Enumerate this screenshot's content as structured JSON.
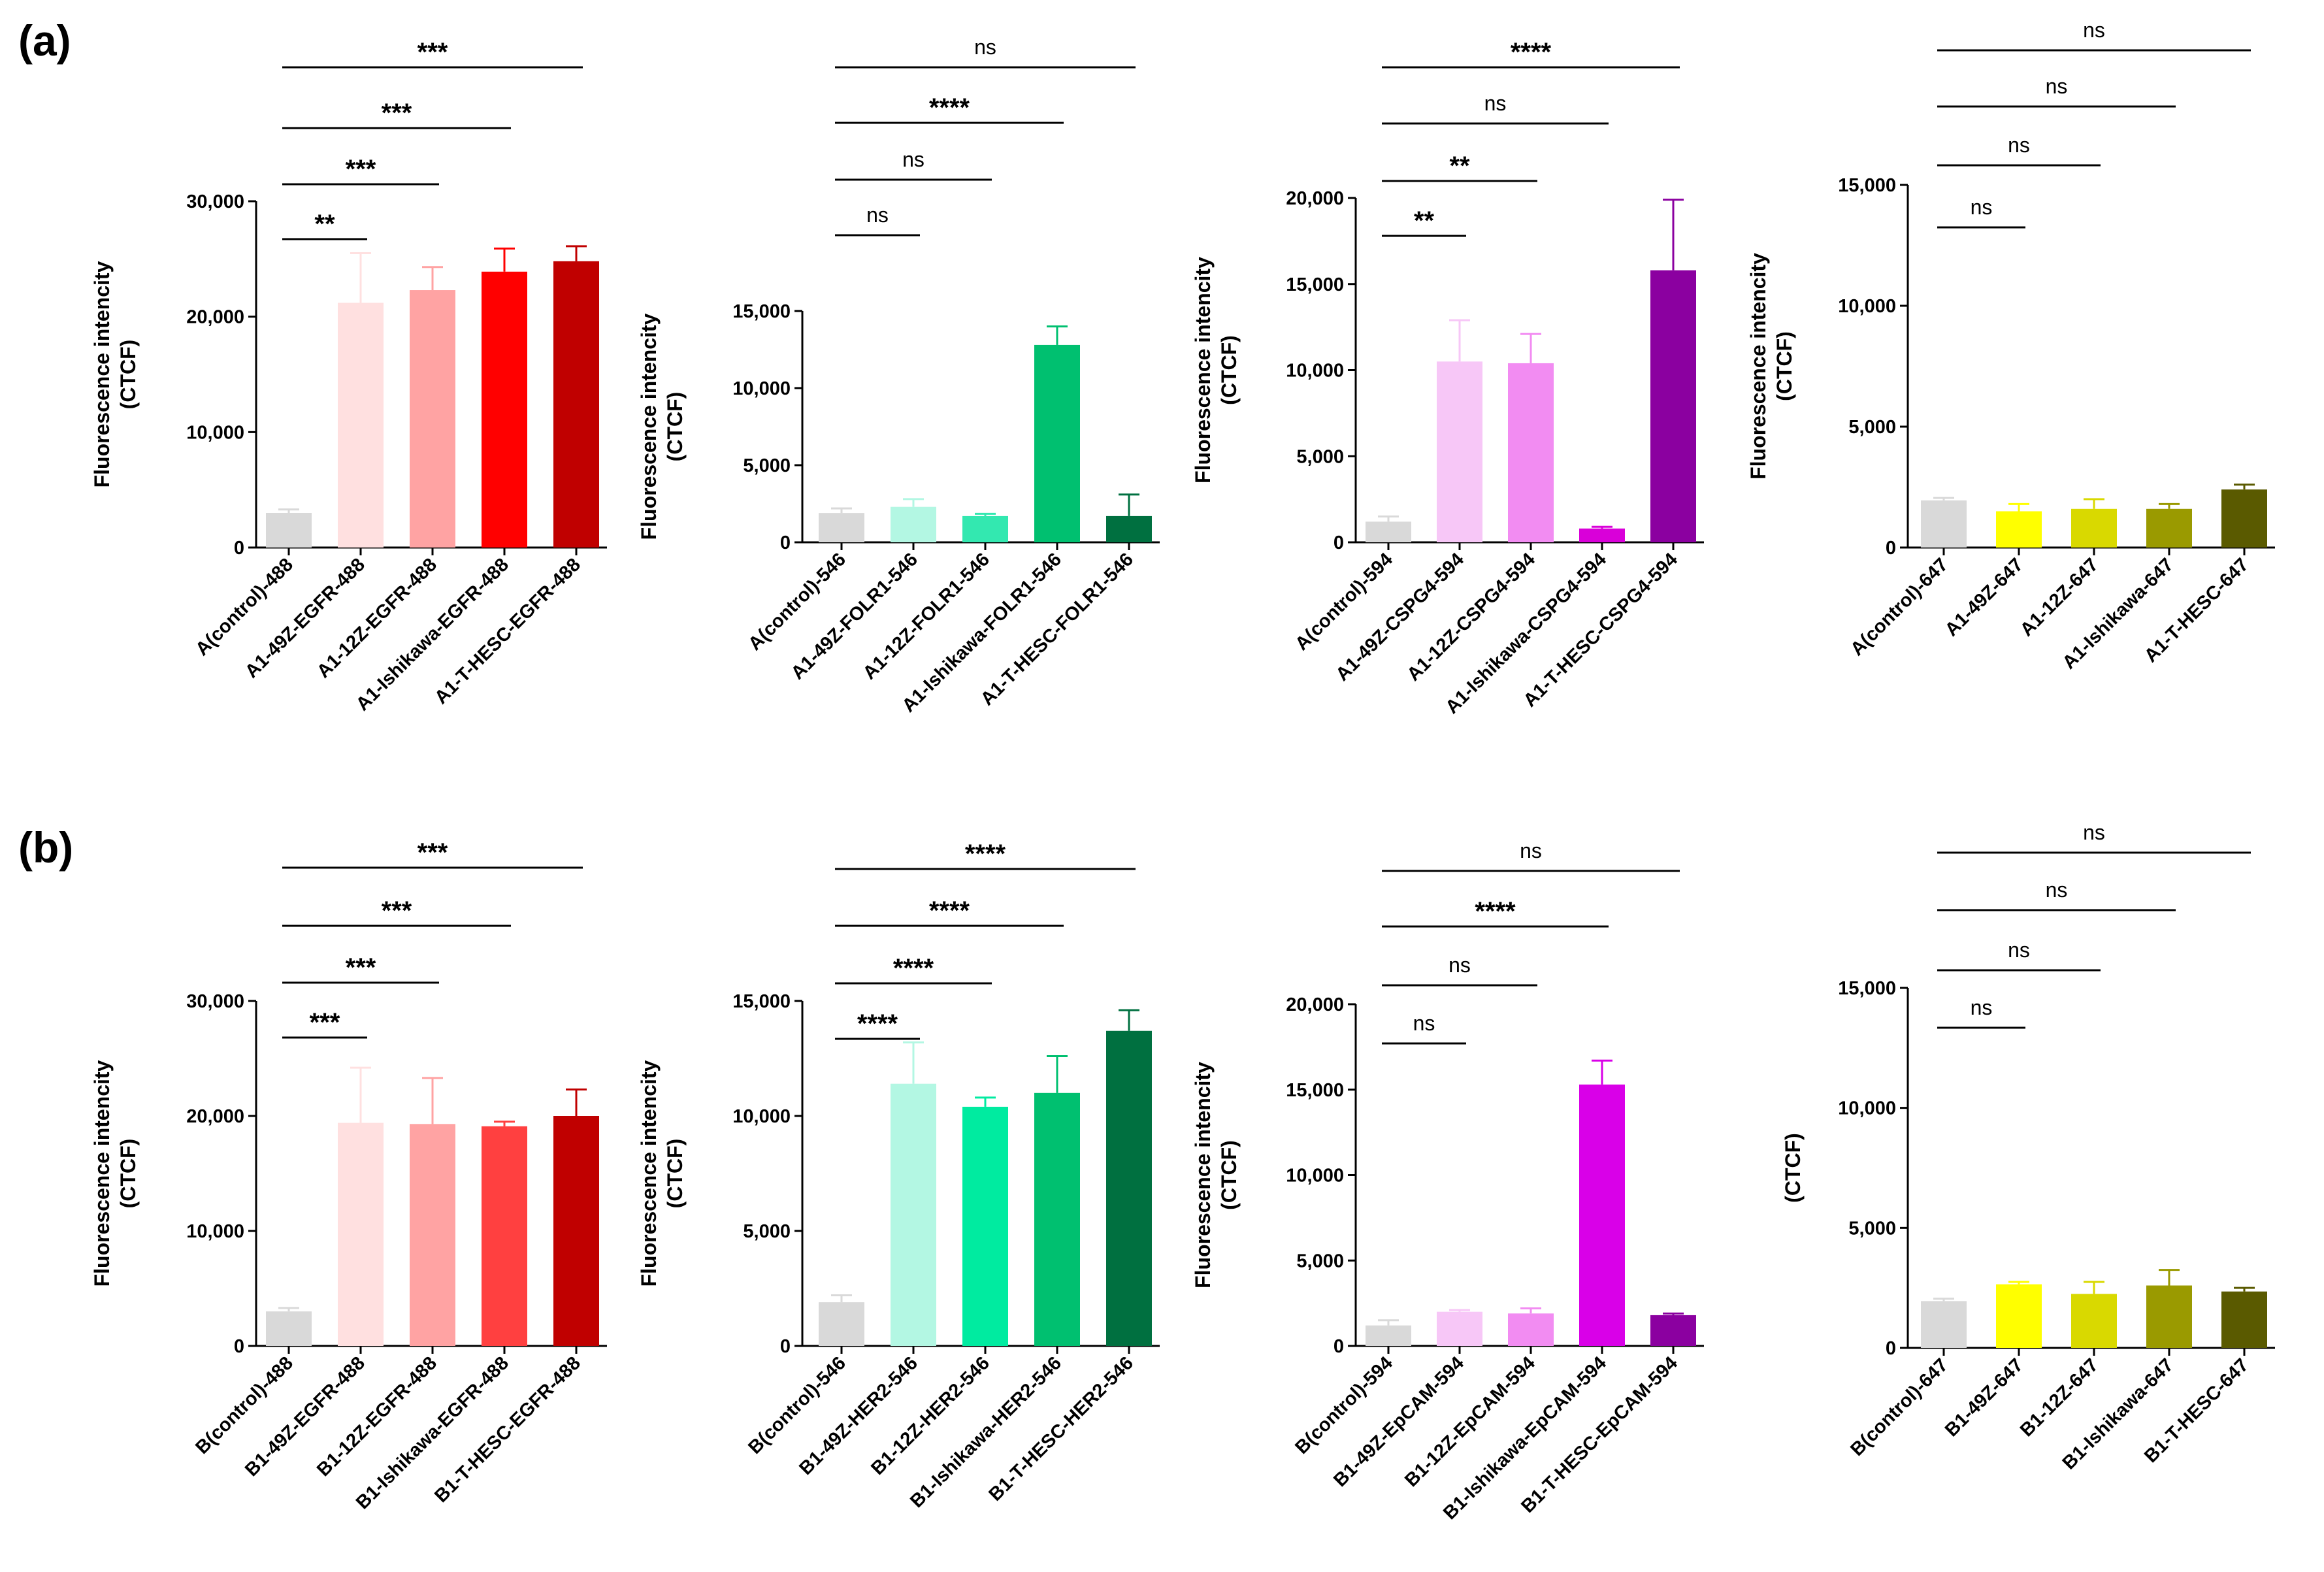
{
  "figure_labels": [
    "(a)",
    "(b)"
  ],
  "chart_data": [
    {
      "panel": "(a)",
      "type": "bar",
      "ylabel": [
        "Fluorescence intencity",
        "(CTCF)"
      ],
      "ylim": [
        0,
        30000
      ],
      "ticks": [
        0,
        10000,
        20000,
        30000
      ],
      "tick_labels": [
        "0",
        "10,000",
        "20,000",
        "30,000"
      ],
      "categories": [
        "A(control)-488",
        "A1-49Z-EGFR-488",
        "A1-12Z-EGFR-488",
        "A1-Ishikawa-EGFR-488",
        "A1-T-HESC-EGFR-488"
      ],
      "values": [
        3000,
        21200,
        22300,
        23900,
        24800
      ],
      "errors": [
        300,
        4300,
        2000,
        2000,
        1300
      ],
      "colors": [
        "#d9d9d9",
        "#ffe0e0",
        "#ffa3a3",
        "#ff0000",
        "#c00000"
      ],
      "comparisons": [
        {
          "to": 1,
          "label": "**"
        },
        {
          "to": 2,
          "label": "***"
        },
        {
          "to": 3,
          "label": "***"
        },
        {
          "to": 4,
          "label": "***"
        }
      ]
    },
    {
      "panel": "(a)",
      "type": "bar",
      "ylabel": [
        "Fluorescence intencity",
        "(CTCF)"
      ],
      "ylim": [
        0,
        15000
      ],
      "ticks": [
        0,
        5000,
        10000,
        15000
      ],
      "tick_labels": [
        "0",
        "5,000",
        "10,000",
        "15,000"
      ],
      "categories": [
        "A(control)-546",
        "A1-49Z-FOLR1-546",
        "A1-12Z-FOLR1-546",
        "A1-Ishikawa-FOLR1-546",
        "A1-T-HESC-FOLR1-546"
      ],
      "values": [
        1900,
        2300,
        1700,
        12800,
        1700
      ],
      "errors": [
        300,
        500,
        150,
        1200,
        1400
      ],
      "colors": [
        "#d9d9d9",
        "#b3f7e3",
        "#33e8b0",
        "#00c070",
        "#007040"
      ],
      "comparisons": [
        {
          "to": 1,
          "label": "ns"
        },
        {
          "to": 2,
          "label": "ns"
        },
        {
          "to": 3,
          "label": "****"
        },
        {
          "to": 4,
          "label": "ns"
        }
      ]
    },
    {
      "panel": "(a)",
      "type": "bar",
      "ylabel": [
        "Fluorescence intencity",
        "(CTCF)"
      ],
      "ylim": [
        0,
        20000
      ],
      "ticks": [
        0,
        5000,
        10000,
        15000,
        20000
      ],
      "tick_labels": [
        "0",
        "5,000",
        "10,000",
        "15,000",
        "20,000"
      ],
      "categories": [
        "A(control)-594",
        "A1-49Z-CSPG4-594",
        "A1-12Z-CSPG4-594",
        "A1-Ishikawa-CSPG4-594",
        "A1-T-HESC-CSPG4-594"
      ],
      "values": [
        1200,
        10500,
        10400,
        800,
        15800
      ],
      "errors": [
        300,
        2400,
        1700,
        100,
        4100
      ],
      "colors": [
        "#d9d9d9",
        "#f7c7f7",
        "#f28cf2",
        "#d900d9",
        "#8b00a0"
      ],
      "comparisons": [
        {
          "to": 1,
          "label": "**"
        },
        {
          "to": 2,
          "label": "**"
        },
        {
          "to": 3,
          "label": "ns"
        },
        {
          "to": 4,
          "label": "****"
        }
      ]
    },
    {
      "panel": "(a)",
      "type": "bar",
      "ylabel": [
        "Fluorescence intencity",
        "(CTCF)"
      ],
      "ylim": [
        0,
        15000
      ],
      "ticks": [
        0,
        5000,
        10000,
        15000
      ],
      "tick_labels": [
        "0",
        "5,000",
        "10,000",
        "15,000"
      ],
      "categories": [
        "A(control)-647",
        "A1-49Z-647",
        "A1-12Z-647",
        "A1-Ishikawa-647",
        "A1-T-HESC-647"
      ],
      "values": [
        1950,
        1500,
        1600,
        1600,
        2400
      ],
      "errors": [
        100,
        300,
        400,
        200,
        200
      ],
      "colors": [
        "#d9d9d9",
        "#ffff00",
        "#d9d900",
        "#9a9a00",
        "#5a5a00"
      ],
      "comparisons": [
        {
          "to": 1,
          "label": "ns"
        },
        {
          "to": 2,
          "label": "ns"
        },
        {
          "to": 3,
          "label": "ns"
        },
        {
          "to": 4,
          "label": "ns"
        }
      ]
    },
    {
      "panel": "(b)",
      "type": "bar",
      "ylabel": [
        "Fluorescence intencity",
        "(CTCF)"
      ],
      "ylim": [
        0,
        30000
      ],
      "ticks": [
        0,
        10000,
        20000,
        30000
      ],
      "tick_labels": [
        "0",
        "10,000",
        "20,000",
        "30,000"
      ],
      "categories": [
        "B(control)-488",
        "B1-49Z-EGFR-488",
        "B1-12Z-EGFR-488",
        "B1-Ishikawa-EGFR-488",
        "B1-T-HESC-EGFR-488"
      ],
      "values": [
        3000,
        19400,
        19300,
        19100,
        20000
      ],
      "errors": [
        300,
        4800,
        4000,
        400,
        2300
      ],
      "colors": [
        "#d9d9d9",
        "#ffe0e0",
        "#ffa3a3",
        "#ff4040",
        "#c00000"
      ],
      "comparisons": [
        {
          "to": 1,
          "label": "***"
        },
        {
          "to": 2,
          "label": "***"
        },
        {
          "to": 3,
          "label": "***"
        },
        {
          "to": 4,
          "label": "***"
        }
      ]
    },
    {
      "panel": "(b)",
      "type": "bar",
      "ylabel": [
        "Fluorescence intencity",
        "(CTCF)"
      ],
      "ylim": [
        0,
        15000
      ],
      "ticks": [
        0,
        5000,
        10000,
        15000
      ],
      "tick_labels": [
        "0",
        "5,000",
        "10,000",
        "15,000"
      ],
      "categories": [
        "B(control)-546",
        "B1-49Z-HER2-546",
        "B1-12Z-HER2-546",
        "B1-Ishikawa-HER2-546",
        "B1-T-HESC-HER2-546"
      ],
      "values": [
        1900,
        11400,
        10400,
        11000,
        13700
      ],
      "errors": [
        300,
        1800,
        400,
        1600,
        900
      ],
      "colors": [
        "#d9d9d9",
        "#b3f7e3",
        "#00eba0",
        "#00c070",
        "#007040"
      ],
      "comparisons": [
        {
          "to": 1,
          "label": "****"
        },
        {
          "to": 2,
          "label": "****"
        },
        {
          "to": 3,
          "label": "****"
        },
        {
          "to": 4,
          "label": "****"
        }
      ]
    },
    {
      "panel": "(b)",
      "type": "bar",
      "ylabel": [
        "Fluorescence intencity",
        "(CTCF)"
      ],
      "ylim": [
        0,
        20000
      ],
      "ticks": [
        0,
        5000,
        10000,
        15000,
        20000
      ],
      "tick_labels": [
        "0",
        "5,000",
        "10,000",
        "15,000",
        "20,000"
      ],
      "categories": [
        "B(control)-594",
        "B1-49Z-EpCAM-594",
        "B1-12Z-EpCAM-594",
        "B1-Ishikawa-EpCAM-594",
        "B1-T-HESC-EpCAM-594"
      ],
      "values": [
        1200,
        2000,
        1900,
        15300,
        1800
      ],
      "errors": [
        300,
        100,
        300,
        1400,
        100
      ],
      "colors": [
        "#d9d9d9",
        "#f7c7f7",
        "#f28cf2",
        "#d900e8",
        "#8b00a0"
      ],
      "comparisons": [
        {
          "to": 1,
          "label": "ns"
        },
        {
          "to": 2,
          "label": "ns"
        },
        {
          "to": 3,
          "label": "****"
        },
        {
          "to": 4,
          "label": "ns"
        }
      ]
    },
    {
      "panel": "(b)",
      "type": "bar",
      "ylabel": [
        "(CTCF)"
      ],
      "ylim": [
        0,
        15000
      ],
      "ticks": [
        0,
        5000,
        10000,
        15000
      ],
      "tick_labels": [
        "0",
        "5,000",
        "10,000",
        "15,000"
      ],
      "categories": [
        "B(control)-647",
        "B1-49Z-647",
        "B1-12Z-647",
        "B1-Ishikawa-647",
        "B1-T-HESC-647"
      ],
      "values": [
        1950,
        2650,
        2250,
        2600,
        2350
      ],
      "errors": [
        100,
        100,
        500,
        650,
        150
      ],
      "colors": [
        "#d9d9d9",
        "#ffff00",
        "#d9d900",
        "#9a9a00",
        "#5a5a00"
      ],
      "comparisons": [
        {
          "to": 1,
          "label": "ns"
        },
        {
          "to": 2,
          "label": "ns"
        },
        {
          "to": 3,
          "label": "ns"
        },
        {
          "to": 4,
          "label": "ns"
        }
      ]
    }
  ]
}
